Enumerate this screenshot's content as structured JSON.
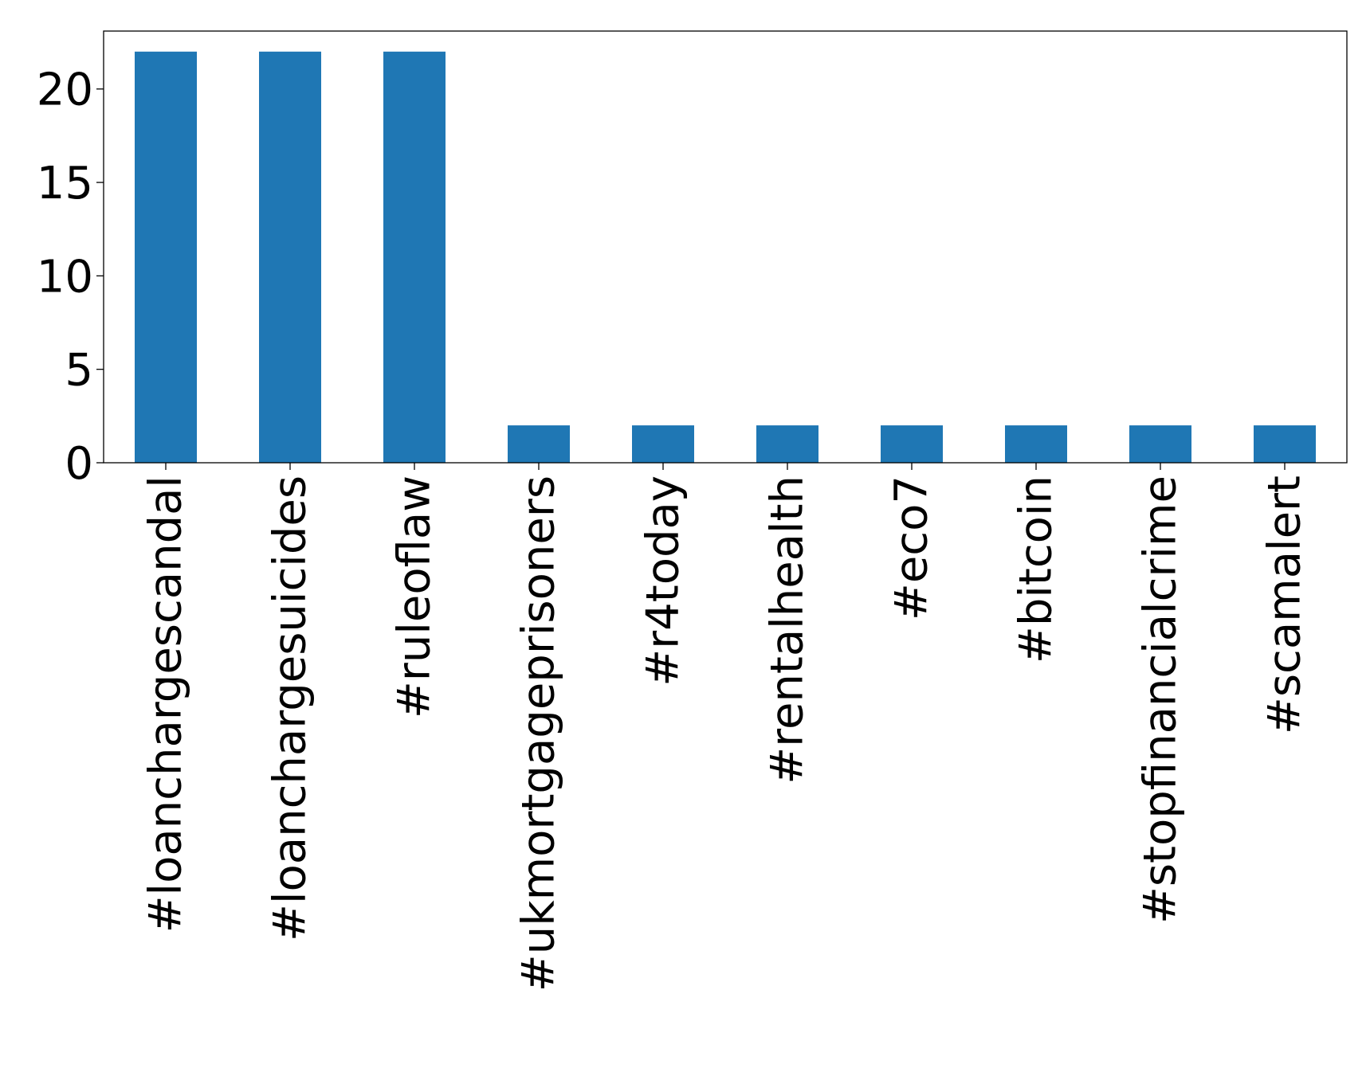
{
  "chart_data": {
    "type": "bar",
    "title": "",
    "xlabel": "",
    "ylabel": "",
    "categories": [
      "#loanchargescandal",
      "#loanchargesuicides",
      "#ruleoflaw",
      "#ukmortgageprisoners",
      "#r4today",
      "#rentalhealth",
      "#eco7",
      "#bitcoin",
      "#stopfinancialcrime",
      "#scamalert"
    ],
    "values": [
      22,
      22,
      22,
      2,
      2,
      2,
      2,
      2,
      2,
      2
    ],
    "ylim": [
      0,
      23.1
    ],
    "yticks": [
      0,
      5,
      10,
      15,
      20
    ],
    "grid": false,
    "legend": "none",
    "colors": {
      "bar": "#1f77b4",
      "axis": "#000000",
      "background": "#ffffff"
    }
  }
}
